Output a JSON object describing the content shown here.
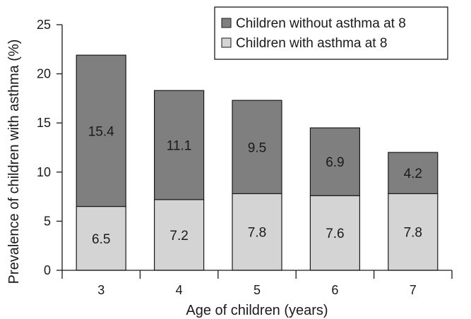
{
  "chart_data": {
    "type": "bar",
    "stacked": true,
    "categories": [
      "3",
      "4",
      "5",
      "6",
      "7"
    ],
    "series": [
      {
        "name": "Children with asthma at 8",
        "values": [
          6.5,
          7.2,
          7.8,
          7.6,
          7.8
        ],
        "color": "#d4d4d4"
      },
      {
        "name": "Children without asthma at 8",
        "values": [
          15.4,
          11.1,
          9.5,
          6.9,
          4.2
        ],
        "color": "#7f7f7f"
      }
    ],
    "data_labels": [
      [
        "6.5",
        "7.2",
        "7.8",
        "7.6",
        "7.8"
      ],
      [
        "15.4",
        "11.1",
        "9.5",
        "6.9",
        "4.2"
      ]
    ],
    "legend_order": [
      1,
      0
    ],
    "xlabel": "Age of children (years)",
    "ylabel": "Prevalence of children with asthma (%)",
    "ylim": [
      0,
      25
    ],
    "yticks": [
      0,
      5,
      10,
      15,
      20,
      25
    ],
    "grid": false,
    "legend_position": "top-right"
  }
}
